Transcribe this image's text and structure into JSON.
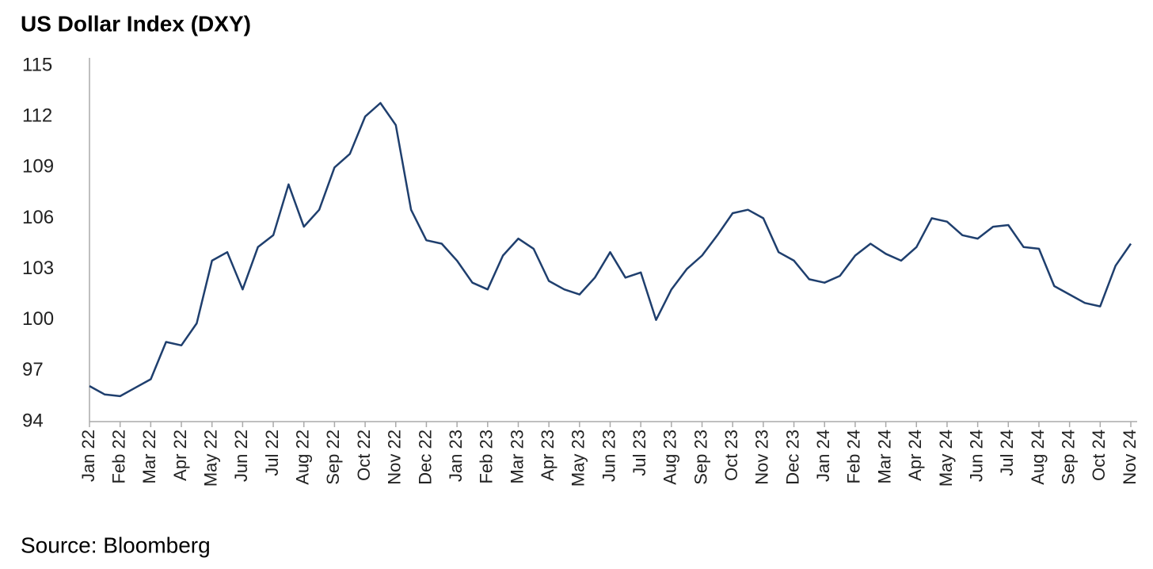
{
  "chart_data": {
    "type": "line",
    "title": "US Dollar Index (DXY)",
    "source": "Source: Bloomberg",
    "categories": [
      "Jan 22",
      null,
      "Feb 22",
      null,
      "Mar 22",
      null,
      "Apr 22",
      null,
      "May 22",
      null,
      "Jun 22",
      null,
      "Jul 22",
      null,
      "Aug 22",
      null,
      "Sep 22",
      null,
      "Oct 22",
      null,
      "Nov 22",
      null,
      "Dec 22",
      null,
      "Jan 23",
      null,
      "Feb 23",
      null,
      "Mar 23",
      null,
      "Apr 23",
      null,
      "May 23",
      null,
      "Jun 23",
      null,
      "Jul 23",
      null,
      "Aug 23",
      null,
      "Sep 23",
      null,
      "Oct 23",
      null,
      "Nov 23",
      null,
      "Dec 23",
      null,
      "Jan 24",
      null,
      "Feb 24",
      null,
      "Mar 24",
      null,
      "Apr 24",
      null,
      "May 24",
      null,
      "Jun 24",
      null,
      "Jul 24",
      null,
      "Aug 24",
      null,
      "Sep 24",
      null,
      "Oct 24",
      null,
      "Nov 24"
    ],
    "series": [
      {
        "name": "DXY",
        "color": "#1f3f6e",
        "values": [
          96.1,
          95.6,
          95.5,
          96.0,
          96.5,
          98.7,
          98.5,
          99.8,
          103.5,
          104.0,
          101.8,
          104.3,
          105.0,
          108.0,
          105.5,
          106.5,
          109.0,
          109.8,
          112.0,
          112.8,
          111.5,
          106.5,
          104.7,
          104.5,
          103.5,
          102.2,
          101.8,
          103.8,
          104.8,
          104.2,
          102.3,
          101.8,
          101.5,
          102.5,
          104.0,
          102.5,
          102.8,
          100.0,
          101.8,
          103.0,
          103.8,
          105.0,
          106.3,
          106.5,
          106.0,
          104.0,
          103.5,
          102.4,
          102.2,
          102.6,
          103.8,
          104.5,
          103.9,
          103.5,
          104.3,
          106.0,
          105.8,
          105.0,
          104.8,
          105.5,
          105.6,
          104.3,
          104.2,
          102.0,
          101.5,
          101.0,
          100.8,
          103.2,
          104.5
        ]
      }
    ],
    "ylim": [
      94,
      115
    ],
    "yticks": [
      94,
      97,
      100,
      103,
      106,
      109,
      112,
      115
    ]
  }
}
